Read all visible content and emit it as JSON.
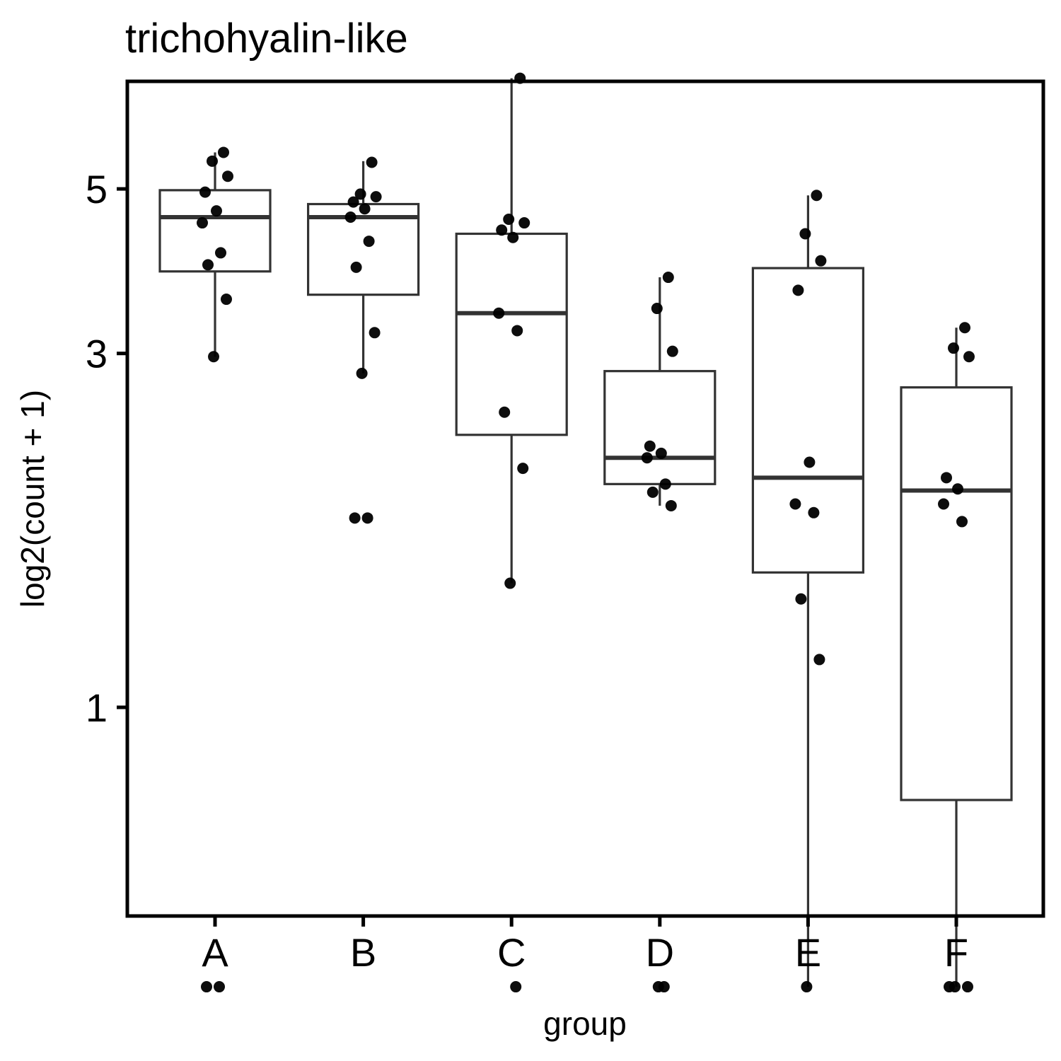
{
  "chart_data": {
    "type": "box",
    "title": "trichohyalin-like",
    "xlabel": "group",
    "ylabel": "log2(count + 1)",
    "scale": "log",
    "categories": [
      "A",
      "B",
      "C",
      "D",
      "E",
      "F"
    ],
    "yticks": [
      1,
      3,
      5
    ],
    "ylim": [
      0.37,
      7.1
    ],
    "boxes": [
      {
        "group": "A",
        "whisker_low": 2.97,
        "q1": 3.87,
        "median": 4.58,
        "q3": 4.98,
        "whisker_high": 5.6
      },
      {
        "group": "B",
        "whisker_low": 2.82,
        "q1": 3.6,
        "median": 4.58,
        "q3": 4.77,
        "whisker_high": 5.45
      },
      {
        "group": "C",
        "whisker_low": 1.47,
        "q1": 2.33,
        "median": 3.4,
        "q3": 4.35,
        "whisker_high": 7.05
      },
      {
        "group": "D",
        "whisker_low": 1.87,
        "q1": 2.0,
        "median": 2.17,
        "q3": 2.84,
        "whisker_high": 3.8
      },
      {
        "group": "E",
        "whisker_low": 0.42,
        "q1": 1.52,
        "median": 2.04,
        "q3": 3.91,
        "whisker_high": 4.9
      },
      {
        "group": "F",
        "whisker_low": 0.42,
        "q1": 0.75,
        "median": 1.96,
        "q3": 2.7,
        "whisker_high": 3.25
      }
    ],
    "points": [
      {
        "group": "A",
        "values": [
          5.6,
          5.45,
          5.2,
          4.95,
          4.67,
          4.5,
          4.1,
          3.95,
          3.55,
          2.97,
          0.42,
          0.42
        ]
      },
      {
        "group": "B",
        "values": [
          5.43,
          4.92,
          4.88,
          4.8,
          4.7,
          4.58,
          4.25,
          3.92,
          3.2,
          2.82,
          1.8,
          1.8
        ]
      },
      {
        "group": "C",
        "values": [
          7.05,
          4.55,
          4.5,
          4.4,
          4.3,
          3.4,
          3.22,
          2.5,
          2.1,
          1.47,
          0.42
        ]
      },
      {
        "group": "D",
        "values": [
          3.8,
          3.45,
          3.02,
          2.25,
          2.2,
          2.17,
          2.0,
          1.95,
          1.87,
          0.42,
          0.42
        ]
      },
      {
        "group": "E",
        "values": [
          4.9,
          4.35,
          4.0,
          3.65,
          2.14,
          1.88,
          1.83,
          1.4,
          1.16,
          0.42
        ]
      },
      {
        "group": "F",
        "values": [
          3.25,
          3.05,
          2.97,
          2.04,
          1.97,
          1.88,
          1.78,
          0.42,
          0.42,
          0.42
        ]
      }
    ]
  }
}
